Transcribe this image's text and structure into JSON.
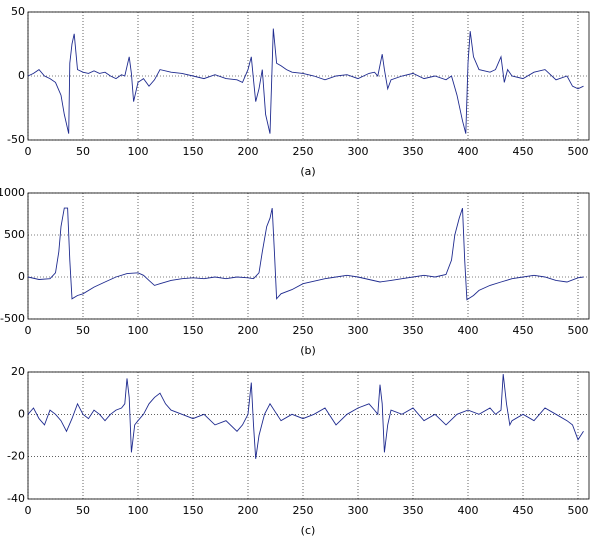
{
  "chart_data": [
    {
      "type": "line",
      "title": "(a)",
      "xlim": [
        0,
        510
      ],
      "xticks": [
        0,
        50,
        100,
        150,
        200,
        250,
        300,
        350,
        400,
        450,
        500
      ],
      "ylim": [
        -50,
        50
      ],
      "yticks": [
        -50,
        0,
        50
      ],
      "grid": true,
      "x": [
        0,
        5,
        10,
        15,
        20,
        25,
        30,
        33,
        37,
        38,
        40,
        42,
        45,
        50,
        55,
        60,
        65,
        70,
        75,
        80,
        85,
        88,
        92,
        94,
        96,
        100,
        105,
        110,
        115,
        120,
        130,
        140,
        150,
        160,
        170,
        180,
        190,
        195,
        200,
        203,
        205,
        207,
        210,
        213,
        216,
        220,
        223,
        226,
        230,
        235,
        240,
        250,
        260,
        270,
        280,
        290,
        300,
        310,
        315,
        318,
        322,
        324,
        327,
        330,
        340,
        350,
        360,
        370,
        380,
        385,
        390,
        395,
        398,
        400,
        402,
        405,
        410,
        420,
        425,
        430,
        433,
        436,
        440,
        450,
        460,
        470,
        480,
        490,
        495,
        500,
        505
      ],
      "series": [
        {
          "color": "#1f2b8f",
          "values": [
            0,
            2,
            5,
            0,
            -2,
            -5,
            -15,
            -30,
            -45,
            10,
            25,
            33,
            5,
            3,
            2,
            4,
            2,
            3,
            0,
            -2,
            1,
            0,
            15,
            2,
            -20,
            -5,
            -2,
            -8,
            -3,
            5,
            3,
            2,
            0,
            -2,
            1,
            -2,
            -3,
            -5,
            5,
            15,
            -3,
            -20,
            -10,
            5,
            -30,
            -45,
            37,
            10,
            8,
            5,
            3,
            2,
            0,
            -3,
            0,
            1,
            -2,
            2,
            3,
            0,
            17,
            5,
            -10,
            -3,
            0,
            2,
            -2,
            0,
            -3,
            0,
            -15,
            -35,
            -45,
            10,
            35,
            15,
            5,
            3,
            5,
            15,
            -5,
            5,
            0,
            -2,
            3,
            5,
            -3,
            0,
            -8,
            -10,
            -8
          ]
        }
      ]
    },
    {
      "type": "line",
      "title": "(b)",
      "xlim": [
        0,
        510
      ],
      "xticks": [
        0,
        50,
        100,
        150,
        200,
        250,
        300,
        350,
        400,
        450,
        500
      ],
      "ylim": [
        -500,
        1000
      ],
      "yticks": [
        -500,
        0,
        500,
        1000
      ],
      "grid": true,
      "x": [
        0,
        10,
        20,
        25,
        28,
        30,
        33,
        36,
        38,
        40,
        45,
        50,
        60,
        70,
        80,
        90,
        100,
        105,
        110,
        115,
        120,
        130,
        140,
        150,
        160,
        170,
        180,
        190,
        200,
        205,
        210,
        213,
        217,
        220,
        222,
        224,
        226,
        230,
        240,
        250,
        260,
        270,
        280,
        290,
        300,
        310,
        320,
        330,
        340,
        350,
        360,
        370,
        380,
        385,
        388,
        392,
        395,
        397,
        399,
        405,
        410,
        420,
        430,
        440,
        450,
        460,
        470,
        480,
        490,
        500,
        505
      ],
      "series": [
        {
          "color": "#1f2b8f",
          "values": [
            0,
            -30,
            -20,
            50,
            300,
            600,
            820,
            820,
            200,
            -260,
            -220,
            -200,
            -120,
            -60,
            0,
            40,
            50,
            20,
            -40,
            -100,
            -80,
            -40,
            -20,
            -10,
            -20,
            0,
            -20,
            0,
            -10,
            -20,
            50,
            300,
            600,
            700,
            820,
            300,
            -260,
            -200,
            -150,
            -80,
            -50,
            -20,
            0,
            20,
            0,
            -30,
            -60,
            -40,
            -20,
            0,
            20,
            0,
            30,
            200,
            500,
            700,
            820,
            200,
            -270,
            -220,
            -160,
            -100,
            -60,
            -20,
            0,
            20,
            0,
            -40,
            -60,
            -10,
            0
          ]
        }
      ]
    },
    {
      "type": "line",
      "title": "(c)",
      "xlim": [
        0,
        510
      ],
      "xticks": [
        0,
        50,
        100,
        150,
        200,
        250,
        300,
        350,
        400,
        450,
        500
      ],
      "ylim": [
        -40,
        20
      ],
      "yticks": [
        -40,
        -20,
        0,
        20
      ],
      "grid": true,
      "x": [
        0,
        5,
        10,
        15,
        20,
        25,
        30,
        35,
        40,
        45,
        50,
        55,
        60,
        65,
        70,
        75,
        80,
        85,
        88,
        90,
        92,
        94,
        97,
        100,
        105,
        110,
        115,
        120,
        125,
        130,
        140,
        150,
        160,
        170,
        180,
        190,
        195,
        200,
        203,
        205,
        207,
        210,
        215,
        220,
        230,
        240,
        250,
        260,
        270,
        280,
        290,
        300,
        310,
        315,
        318,
        320,
        322,
        324,
        327,
        330,
        340,
        350,
        360,
        370,
        380,
        390,
        400,
        410,
        420,
        425,
        430,
        432,
        435,
        438,
        440,
        450,
        460,
        470,
        480,
        490,
        495,
        500,
        505
      ],
      "series": [
        {
          "color": "#1f2b8f",
          "values": [
            0,
            3,
            -2,
            -5,
            2,
            0,
            -3,
            -8,
            -2,
            5,
            0,
            -2,
            2,
            0,
            -3,
            0,
            2,
            3,
            5,
            17,
            8,
            -18,
            -5,
            -3,
            0,
            5,
            8,
            10,
            5,
            2,
            0,
            -2,
            0,
            -5,
            -3,
            -8,
            -5,
            0,
            15,
            -5,
            -21,
            -10,
            0,
            5,
            -3,
            0,
            -2,
            0,
            3,
            -5,
            0,
            3,
            5,
            2,
            0,
            14,
            5,
            -18,
            -5,
            2,
            0,
            3,
            -3,
            0,
            -5,
            0,
            2,
            0,
            3,
            0,
            2,
            19,
            5,
            -5,
            -3,
            0,
            -3,
            3,
            0,
            -3,
            -5,
            -12,
            -8
          ]
        }
      ]
    }
  ]
}
